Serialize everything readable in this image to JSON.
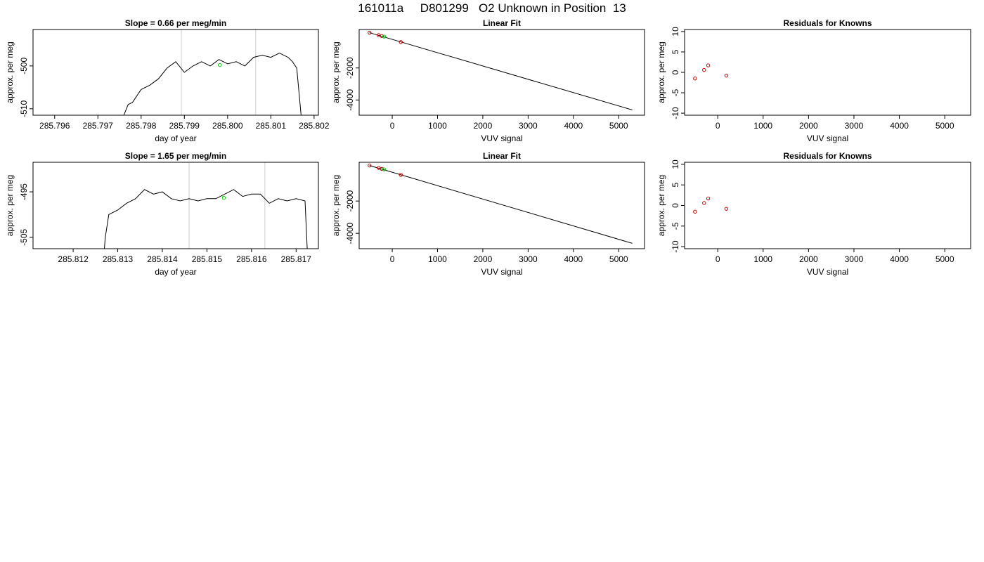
{
  "figure": {
    "title": "161011a     D801299   O2 Unknown in Position  13",
    "colors": {
      "line": "#000000",
      "grid": "#cccccc",
      "known_point": "#cc0000",
      "unknown_point": "#00cc00"
    }
  },
  "chart_data": [
    {
      "type": "line",
      "title": "Slope =  0.66  per meg/min",
      "xlabel": "day of year",
      "ylabel": "approx. per meg",
      "xlim": [
        285.7955,
        285.8021
      ],
      "ylim": [
        -511.5,
        -491.5
      ],
      "xticks": [
        "285.796",
        "285.797",
        "285.798",
        "285.799",
        "285.800",
        "285.801",
        "285.802"
      ],
      "xtick_values": [
        285.796,
        285.797,
        285.798,
        285.799,
        285.8,
        285.801,
        285.802
      ],
      "yticks": [
        "-500",
        "-510"
      ],
      "ytick_values": [
        -500,
        -510
      ],
      "vlines": [
        285.79893,
        285.80065
      ],
      "series": [
        {
          "x": [
            285.7976,
            285.7977,
            285.7978,
            285.798,
            285.7982,
            285.7984,
            285.7986,
            285.7988,
            285.799,
            285.7992,
            285.7994,
            285.7996,
            285.7998,
            285.8,
            285.8002,
            285.8004,
            285.8006,
            285.8008,
            285.801,
            285.8012,
            285.8014,
            285.8015,
            285.8016,
            285.8017
          ],
          "y": [
            -511.5,
            -509.0,
            -508.5,
            -505.5,
            -504.5,
            -503.0,
            -500.5,
            -499.0,
            -501.5,
            -500.0,
            -499.0,
            -500.0,
            -498.5,
            -499.5,
            -499.0,
            -500.0,
            -498.0,
            -497.5,
            -498.0,
            -497.0,
            -498.0,
            -499.0,
            -500.5,
            -511.5
          ]
        }
      ],
      "points": [
        {
          "x": 285.79982,
          "y": -499.8,
          "kind": "unknown"
        }
      ]
    },
    {
      "type": "scatter",
      "title": "Linear Fit",
      "xlabel": "VUV signal",
      "ylabel": "approx. per meg",
      "xlim": [
        -730,
        5570
      ],
      "ylim": [
        -4950,
        400
      ],
      "xticks": [
        "0",
        "1000",
        "2000",
        "3000",
        "4000",
        "5000"
      ],
      "xtick_values": [
        0,
        1000,
        2000,
        3000,
        4000,
        5000
      ],
      "yticks": [
        "-2000",
        "-4000"
      ],
      "ytick_values": [
        -2000,
        -4000
      ],
      "fit_line": {
        "x": [
          -500,
          5300
        ],
        "y": [
          200,
          -4620
        ]
      },
      "points": [
        {
          "x": -500,
          "y": 200,
          "kind": "known"
        },
        {
          "x": -300,
          "y": 50,
          "kind": "known"
        },
        {
          "x": -230,
          "y": -10,
          "kind": "known"
        },
        {
          "x": 190,
          "y": -380,
          "kind": "known"
        },
        {
          "x": -180,
          "y": -40,
          "kind": "unknown"
        }
      ]
    },
    {
      "type": "scatter",
      "title": "Residuals for Knowns",
      "xlabel": "VUV signal",
      "ylabel": "approx. per meg",
      "xlim": [
        -730,
        5570
      ],
      "ylim": [
        -10.5,
        10.5
      ],
      "xticks": [
        "0",
        "1000",
        "2000",
        "3000",
        "4000",
        "5000"
      ],
      "xtick_values": [
        0,
        1000,
        2000,
        3000,
        4000,
        5000
      ],
      "yticks": [
        "10",
        "5",
        "0",
        "-5",
        "-10"
      ],
      "ytick_values": [
        10,
        5,
        0,
        -5,
        -10
      ],
      "points": [
        {
          "x": -500,
          "y": -1.5,
          "kind": "known"
        },
        {
          "x": -300,
          "y": 0.6,
          "kind": "known"
        },
        {
          "x": -210,
          "y": 1.7,
          "kind": "known"
        },
        {
          "x": 190,
          "y": -0.8,
          "kind": "known"
        }
      ]
    },
    {
      "type": "line",
      "title": "Slope =  1.65  per meg/min",
      "xlabel": "day of year",
      "ylabel": "approx. per meg",
      "xlim": [
        285.8111,
        285.8175
      ],
      "ylim": [
        -507.5,
        -488.5
      ],
      "xticks": [
        "285.812",
        "285.813",
        "285.814",
        "285.815",
        "285.816",
        "285.817"
      ],
      "xtick_values": [
        285.812,
        285.813,
        285.814,
        285.815,
        285.816,
        285.817
      ],
      "yticks": [
        "-495",
        "-505"
      ],
      "ytick_values": [
        -495,
        -505
      ],
      "vlines": [
        285.8146,
        285.8163
      ],
      "series": [
        {
          "x": [
            285.8127,
            285.81272,
            285.8128,
            285.813,
            285.8132,
            285.8134,
            285.8136,
            285.8138,
            285.814,
            285.8142,
            285.8144,
            285.8146,
            285.8148,
            285.815,
            285.8152,
            285.8154,
            285.8156,
            285.8158,
            285.816,
            285.8162,
            285.8164,
            285.8166,
            285.8168,
            285.817,
            285.8172,
            285.81725
          ],
          "y": [
            -507.5,
            -505.0,
            -500.0,
            -499.0,
            -497.5,
            -496.5,
            -494.5,
            -495.5,
            -495.0,
            -496.5,
            -497.0,
            -496.5,
            -497.0,
            -496.5,
            -496.5,
            -495.5,
            -494.5,
            -496.0,
            -495.5,
            -495.5,
            -497.5,
            -496.5,
            -497.0,
            -496.5,
            -497.0,
            -507.5
          ]
        }
      ],
      "points": [
        {
          "x": 285.81538,
          "y": -496.3,
          "kind": "unknown"
        }
      ]
    },
    {
      "type": "scatter",
      "title": "Linear Fit",
      "xlabel": "VUV signal",
      "ylabel": "approx. per meg",
      "xlim": [
        -730,
        5570
      ],
      "ylim": [
        -4950,
        400
      ],
      "xticks": [
        "0",
        "1000",
        "2000",
        "3000",
        "4000",
        "5000"
      ],
      "xtick_values": [
        0,
        1000,
        2000,
        3000,
        4000,
        5000
      ],
      "yticks": [
        "-2000",
        "-4000"
      ],
      "ytick_values": [
        -2000,
        -4000
      ],
      "fit_line": {
        "x": [
          -500,
          5300
        ],
        "y": [
          200,
          -4620
        ]
      },
      "points": [
        {
          "x": -500,
          "y": 200,
          "kind": "known"
        },
        {
          "x": -300,
          "y": 50,
          "kind": "known"
        },
        {
          "x": -230,
          "y": -10,
          "kind": "known"
        },
        {
          "x": 190,
          "y": -380,
          "kind": "known"
        },
        {
          "x": -180,
          "y": -40,
          "kind": "unknown"
        }
      ]
    },
    {
      "type": "scatter",
      "title": "Residuals for Knowns",
      "xlabel": "VUV signal",
      "ylabel": "approx. per meg",
      "xlim": [
        -730,
        5570
      ],
      "ylim": [
        -10.5,
        10.5
      ],
      "xticks": [
        "0",
        "1000",
        "2000",
        "3000",
        "4000",
        "5000"
      ],
      "xtick_values": [
        0,
        1000,
        2000,
        3000,
        4000,
        5000
      ],
      "yticks": [
        "10",
        "5",
        "0",
        "-5",
        "-10"
      ],
      "ytick_values": [
        10,
        5,
        0,
        -5,
        -10
      ],
      "points": [
        {
          "x": -500,
          "y": -1.5,
          "kind": "known"
        },
        {
          "x": -300,
          "y": 0.6,
          "kind": "known"
        },
        {
          "x": -210,
          "y": 1.7,
          "kind": "known"
        },
        {
          "x": 190,
          "y": -0.8,
          "kind": "known"
        }
      ]
    }
  ]
}
